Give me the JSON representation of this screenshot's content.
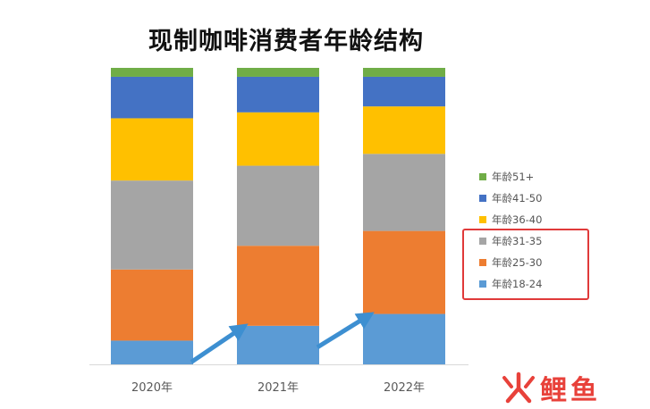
{
  "chart_data": {
    "type": "bar",
    "stacked": true,
    "title": "现制咖啡消费者年龄结构",
    "xlabel": "",
    "ylabel": "",
    "categories": [
      "2020年",
      "2021年",
      "2022年"
    ],
    "ylim": [
      0,
      100
    ],
    "grid": false,
    "legend_position": "right",
    "series": [
      {
        "name": "年龄18-24",
        "color": "#5b9bd5",
        "values": [
          8,
          13,
          17
        ]
      },
      {
        "name": "年龄25-30",
        "color": "#ed7d31",
        "values": [
          24,
          27,
          28
        ]
      },
      {
        "name": "年龄31-35",
        "color": "#a5a5a5",
        "values": [
          30,
          27,
          26
        ]
      },
      {
        "name": "年龄36-40",
        "color": "#ffc000",
        "values": [
          21,
          18,
          16
        ]
      },
      {
        "name": "年龄41-50",
        "color": "#4472c4",
        "values": [
          14,
          12,
          10
        ]
      },
      {
        "name": "年龄51+",
        "color": "#70ad47",
        "values": [
          3,
          3,
          3
        ]
      }
    ],
    "annotations": [
      {
        "type": "arrow",
        "from_category": "2020年",
        "to_category": "2021年",
        "series": "年龄18-24"
      },
      {
        "type": "arrow",
        "from_category": "2021年",
        "to_category": "2022年",
        "series": "年龄18-24"
      }
    ]
  },
  "colors": {
    "arrow": "#3d8fd1",
    "highlight_box": "#e03a3a",
    "axis": "#d9d9d9",
    "logo": "#e8413a"
  },
  "logo": {
    "text": "鲤鱼",
    "icon": "fire-icon"
  }
}
